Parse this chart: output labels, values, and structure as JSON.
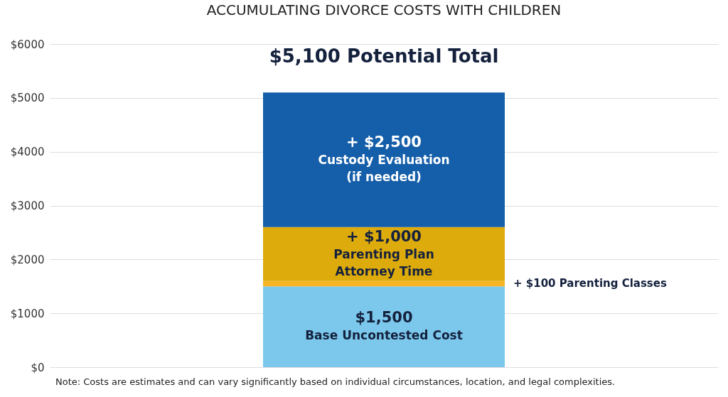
{
  "chart_data": {
    "type": "bar",
    "title": "ACCUMULATING DIVORCE COSTS WITH CHILDREN",
    "categories": [
      null
    ],
    "stacked": true,
    "series": [
      {
        "name": "Base Uncontested Cost",
        "color": "#7cc8ec",
        "values": [
          1500
        ],
        "value_labels": [
          "$1,500"
        ]
      },
      {
        "name": "Parenting Classes",
        "color": "#f7b424",
        "values": [
          100
        ],
        "value_labels": [
          "+ $100"
        ]
      },
      {
        "name": "Parenting Plan Attorney Time",
        "color": "#deab0c",
        "values": [
          1000
        ],
        "value_labels": [
          "+ $1,000"
        ]
      },
      {
        "name": "Custody Evaluation (if needed)",
        "color": "#155ea9",
        "values": [
          2500
        ],
        "value_labels": [
          "+ $2,500"
        ]
      }
    ],
    "totals": [
      "$5,100 Potential Total"
    ],
    "ylim": [
      0,
      6000
    ],
    "yticks": [
      {
        "value": 0,
        "label": "$0"
      },
      {
        "value": 1000,
        "label": "$1000"
      },
      {
        "value": 2000,
        "label": "$2000"
      },
      {
        "value": 3000,
        "label": "$3000"
      },
      {
        "value": 4000,
        "label": "$4000"
      },
      {
        "value": 5000,
        "label": "$5000"
      },
      {
        "value": 6000,
        "label": "$6000"
      }
    ],
    "grid": "y",
    "tick_labels": "y",
    "annotations": [
      "Note: Costs are estimates and can vary significantly based on individual circumstances, location, and legal complexities."
    ]
  }
}
